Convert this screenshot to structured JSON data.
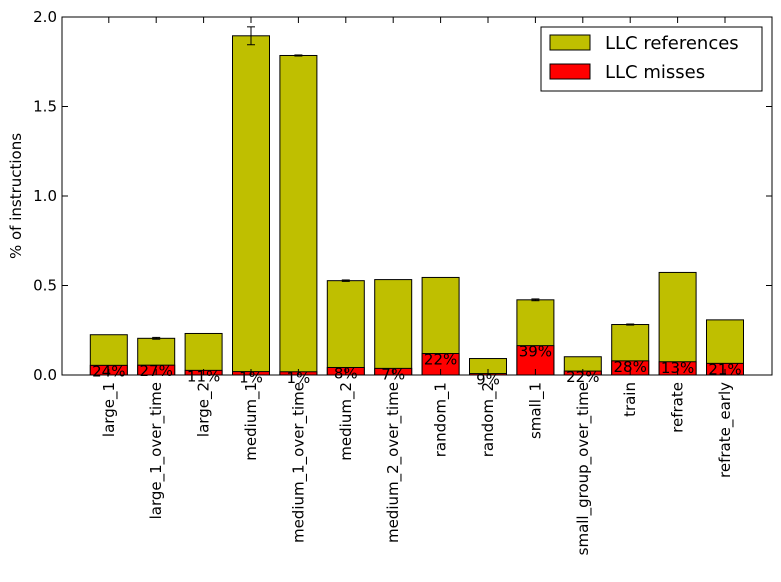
{
  "chart_data": {
    "type": "bar",
    "stacked_overlay": true,
    "title": "",
    "xlabel": "",
    "ylabel": "% of instructions",
    "ylim": [
      0,
      2.0
    ],
    "yticks": [
      "0.0",
      "0.5",
      "1.0",
      "1.5",
      "2.0"
    ],
    "ytick_values": [
      0.0,
      0.5,
      1.0,
      1.5,
      2.0
    ],
    "categories": [
      "large_1",
      "large_1_over_time",
      "large_2",
      "medium_1",
      "medium_1_over_time",
      "medium_2",
      "medium_2_over_time",
      "random_1",
      "random_2",
      "small_1",
      "small_group_over_time",
      "train",
      "refrate",
      "refrate_early"
    ],
    "series": [
      {
        "name": "LLC references",
        "color": "#bfbf00",
        "values": [
          0.225,
          0.205,
          0.232,
          1.895,
          1.785,
          0.527,
          0.533,
          0.545,
          0.092,
          0.42,
          0.102,
          0.282,
          0.573,
          0.308
        ],
        "error": [
          0.0,
          0.005,
          0.0,
          0.05,
          0.003,
          0.004,
          0.0,
          0.0,
          0.0,
          0.005,
          0.0,
          0.003,
          0.0,
          0.0
        ]
      },
      {
        "name": "LLC misses",
        "color": "#ff0000",
        "values": [
          0.054,
          0.055,
          0.026,
          0.019,
          0.018,
          0.042,
          0.037,
          0.12,
          0.008,
          0.164,
          0.022,
          0.079,
          0.074,
          0.065
        ]
      }
    ],
    "miss_percent_labels": [
      "24%",
      "27%",
      "11%",
      "1%",
      "1%",
      "8%",
      "7%",
      "22%",
      "9%",
      "39%",
      "22%",
      "28%",
      "13%",
      "21%"
    ],
    "legend_position": "upper-right",
    "grid": false
  }
}
